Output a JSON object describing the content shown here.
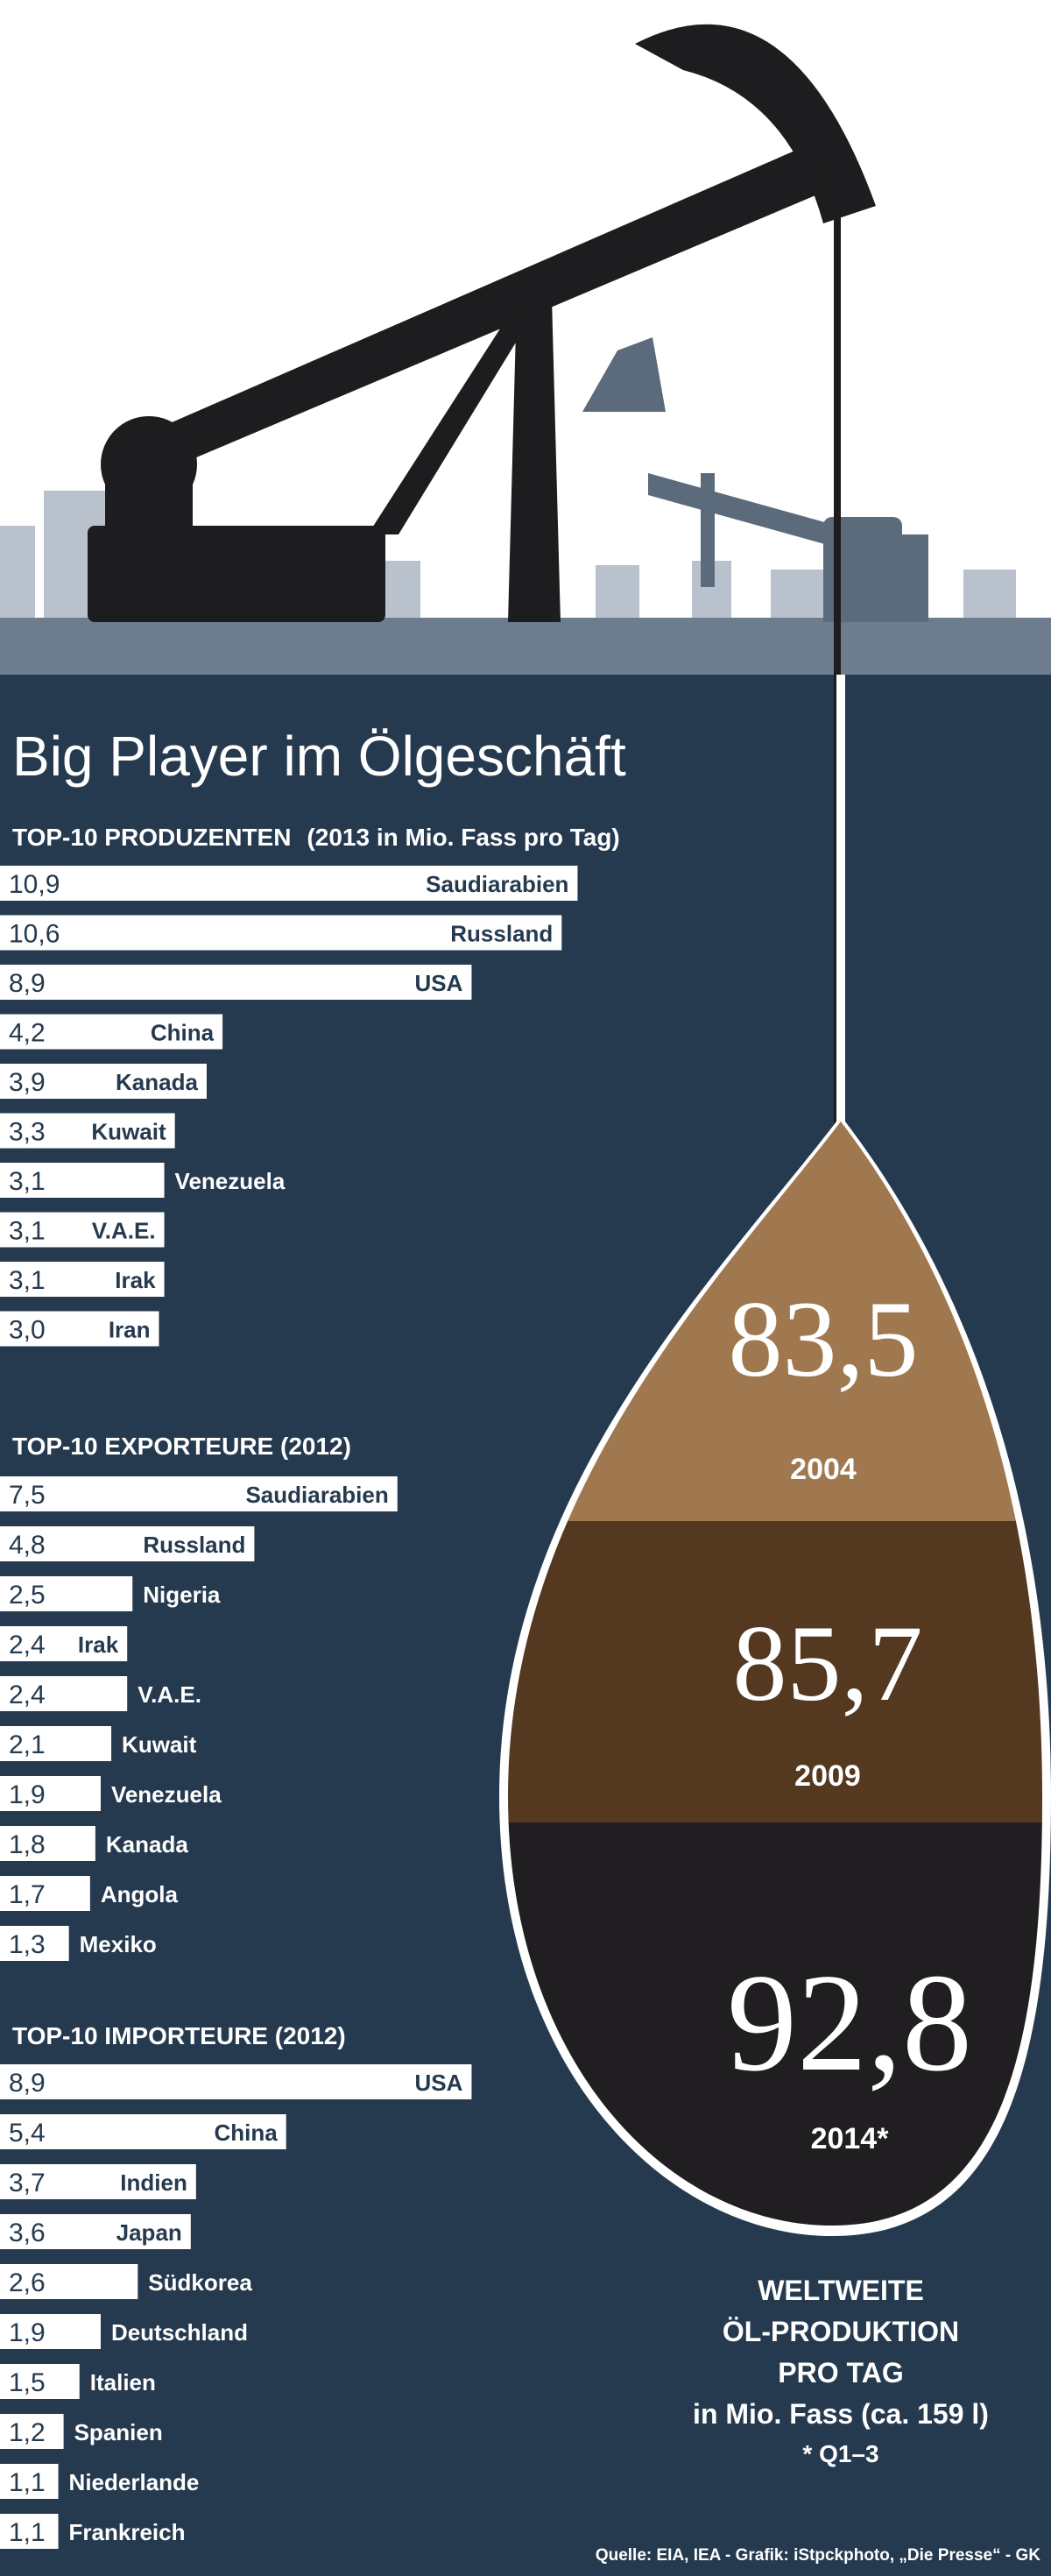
{
  "title": "Big Player im Ölgeschäft",
  "colors": {
    "navy": "#263a4f",
    "sky_band": "#6e7d8e",
    "rig_dark": "#1d1d1f",
    "rig_grey": "#5b6b7c",
    "drop_light": "#a07850",
    "drop_mid": "#54381f",
    "drop_dark": "#201e20",
    "bar": "#ffffff",
    "text": "#ffffff"
  },
  "chart_data": [
    {
      "type": "bar",
      "orientation": "horizontal",
      "title": "TOP-10 PRODUZENTEN",
      "subtitle": "(2013 in Mio. Fass pro Tag)",
      "categories": [
        "Saudiarabien",
        "Russland",
        "USA",
        "China",
        "Kanada",
        "Kuwait",
        "Venezuela",
        "V.A.E.",
        "Irak",
        "Iran"
      ],
      "value_labels": [
        "10,9",
        "10,6",
        "8,9",
        "4,2",
        "3,9",
        "3,3",
        "3,1",
        "3,1",
        "3,1",
        "3,0"
      ],
      "values": [
        10.9,
        10.6,
        8.9,
        4.2,
        3.9,
        3.3,
        3.1,
        3.1,
        3.1,
        3.0
      ]
    },
    {
      "type": "bar",
      "orientation": "horizontal",
      "title": "TOP-10 EXPORTEURE (2012)",
      "categories": [
        "Saudiarabien",
        "Russland",
        "Nigeria",
        "Irak",
        "V.A.E.",
        "Kuwait",
        "Venezuela",
        "Kanada",
        "Angola",
        "Mexiko"
      ],
      "value_labels": [
        "7,5",
        "4,8",
        "2,5",
        "2,4",
        "2,4",
        "2,1",
        "1,9",
        "1,8",
        "1,7",
        "1,3"
      ],
      "values": [
        7.5,
        4.8,
        2.5,
        2.4,
        2.4,
        2.1,
        1.9,
        1.8,
        1.7,
        1.3
      ]
    },
    {
      "type": "bar",
      "orientation": "horizontal",
      "title": "TOP-10 IMPORTEURE (2012)",
      "categories": [
        "USA",
        "China",
        "Indien",
        "Japan",
        "Südkorea",
        "Deutschland",
        "Italien",
        "Spanien",
        "Niederlande",
        "Frankreich"
      ],
      "value_labels": [
        "8,9",
        "5,4",
        "3,7",
        "3,6",
        "2,6",
        "1,9",
        "1,5",
        "1,2",
        "1,1",
        "1,1"
      ],
      "values": [
        8.9,
        5.4,
        3.7,
        3.6,
        2.6,
        1.9,
        1.5,
        1.2,
        1.1,
        1.1
      ]
    },
    {
      "type": "table",
      "title": "WELTWEITE ÖL-PRODUKTION PRO TAG in Mio. Fass (ca. 159 l)",
      "rows": [
        {
          "year": "2004",
          "value_label": "83,5",
          "value": 83.5
        },
        {
          "year": "2009",
          "value_label": "85,7",
          "value": 85.7
        },
        {
          "year": "2014*",
          "value_label": "92,8",
          "value": 92.8
        }
      ]
    }
  ],
  "drop_note": {
    "lines": [
      "WELTWEITE",
      "ÖL-PRODUKTION",
      "PRO TAG",
      "in Mio. Fass (ca. 159 l)"
    ],
    "footnote": "* Q1–3"
  },
  "source": "Quelle: EIA, IEA - Grafik: iStpckphoto, „Die Presse“ - GK"
}
